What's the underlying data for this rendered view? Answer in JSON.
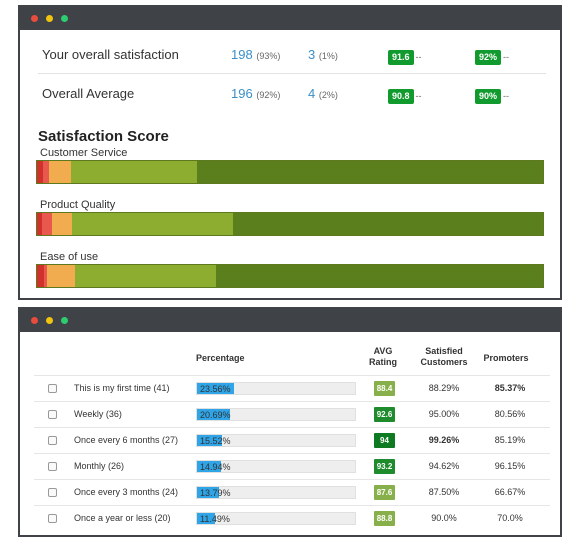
{
  "summary": {
    "rows": [
      {
        "label": "Your overall satisfaction",
        "n1": "198",
        "p1": "(93%)",
        "n2": "3",
        "p2": "(1%)",
        "badge1": "91.6",
        "badge2": "92%",
        "dash": "--"
      },
      {
        "label": "Overall Average",
        "n1": "196",
        "p1": "(92%)",
        "n2": "4",
        "p2": "(2%)",
        "badge1": "90.8",
        "badge2": "90%",
        "dash": "--"
      }
    ]
  },
  "satisfaction": {
    "title": "Satisfaction Score",
    "bars": [
      {
        "label": "Customer Service",
        "segments": [
          1.2,
          1.2,
          4.3,
          25.0,
          68.3
        ]
      },
      {
        "label": "Product Quality",
        "segments": [
          1.0,
          2.0,
          4.0,
          31.7,
          61.3
        ]
      },
      {
        "label": "Ease of use",
        "segments": [
          1.4,
          0.6,
          5.6,
          27.8,
          64.6
        ]
      }
    ],
    "colors": [
      "#d0312d",
      "#e8584d",
      "#f0ac4f",
      "#8cad30",
      "#5c7f1e"
    ]
  },
  "table": {
    "headers": {
      "percentage": "Percentage",
      "avg1": "AVG",
      "avg2": "Rating",
      "sat1": "Satisfied",
      "sat2": "Customers",
      "promoters": "Promoters"
    },
    "rows": [
      {
        "label": "This is my first time (41)",
        "pct": "23.56%",
        "fill": 23.56,
        "rating": "88.4",
        "rating_color": "#87b04b",
        "satisfied": "88.29%",
        "satisfied_bold": false,
        "promoters": "85.37%",
        "promoters_bold": true
      },
      {
        "label": "Weekly (36)",
        "pct": "20.69%",
        "fill": 20.69,
        "rating": "92.6",
        "rating_color": "#1e8c2c",
        "satisfied": "95.00%",
        "satisfied_bold": false,
        "promoters": "80.56%",
        "promoters_bold": false
      },
      {
        "label": "Once every 6 months (27)",
        "pct": "15.52%",
        "fill": 15.52,
        "rating": "94",
        "rating_color": "#0e7a22",
        "satisfied": "99.26%",
        "satisfied_bold": true,
        "promoters": "85.19%",
        "promoters_bold": false
      },
      {
        "label": "Monthly (26)",
        "pct": "14.94%",
        "fill": 14.94,
        "rating": "93.2",
        "rating_color": "#1e8c2c",
        "satisfied": "94.62%",
        "satisfied_bold": false,
        "promoters": "96.15%",
        "promoters_bold": false
      },
      {
        "label": "Once every 3 months (24)",
        "pct": "13.79%",
        "fill": 13.79,
        "rating": "87.6",
        "rating_color": "#87b04b",
        "satisfied": "87.50%",
        "satisfied_bold": false,
        "promoters": "66.67%",
        "promoters_bold": false
      },
      {
        "label": "Once a year or less (20)",
        "pct": "11.49%",
        "fill": 11.49,
        "rating": "88.8",
        "rating_color": "#87b04b",
        "satisfied": "90.0%",
        "satisfied_bold": false,
        "promoters": "70.0%",
        "promoters_bold": false
      }
    ]
  }
}
